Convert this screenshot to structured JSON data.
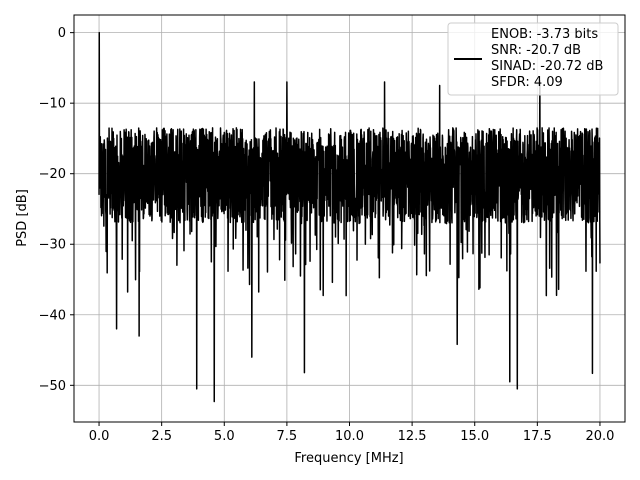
{
  "chart_data": {
    "type": "line",
    "title": "",
    "xlabel": "Frequency [MHz]",
    "ylabel": "PSD [dB]",
    "xlim": [
      -1.0,
      21.0
    ],
    "ylim": [
      -55.2,
      2.5
    ],
    "xticks": [
      0.0,
      2.5,
      5.0,
      7.5,
      10.0,
      12.5,
      15.0,
      17.5,
      20.0
    ],
    "xtick_labels": [
      "0.0",
      "2.5",
      "5.0",
      "7.5",
      "10.0",
      "12.5",
      "15.0",
      "17.5",
      "20.0"
    ],
    "yticks": [
      0,
      -10,
      -20,
      -30,
      -40,
      -50
    ],
    "ytick_labels": [
      "0",
      "−10",
      "−20",
      "−30",
      "−40",
      "−50"
    ],
    "grid": true,
    "legend_placement": "top-right",
    "series": [
      {
        "color": "#000000",
        "x_range": [
          0.0,
          20.0
        ],
        "peak": {
          "x": 0.02,
          "y": 0.0
        },
        "band": {
          "upper_typical": -13.5,
          "lower_typical": -27.0,
          "center": -20.5
        },
        "notable_dips": [
          {
            "x": 3.9,
            "y": -50.5
          },
          {
            "x": 4.6,
            "y": -52.3
          },
          {
            "x": 8.2,
            "y": -48.2
          },
          {
            "x": 16.4,
            "y": -49.5
          },
          {
            "x": 16.7,
            "y": -50.5
          },
          {
            "x": 19.7,
            "y": -48.3
          },
          {
            "x": 6.1,
            "y": -46.0
          },
          {
            "x": 14.3,
            "y": -44.2
          },
          {
            "x": 0.7,
            "y": -42.0
          },
          {
            "x": 1.6,
            "y": -43.0
          }
        ],
        "notable_peaks": [
          {
            "x": 6.2,
            "y": -7.0
          },
          {
            "x": 7.5,
            "y": -7.0
          },
          {
            "x": 11.4,
            "y": -7.0
          },
          {
            "x": 13.6,
            "y": -7.5
          },
          {
            "x": 17.6,
            "y": -6.8
          }
        ]
      }
    ],
    "legend": {
      "lines": [
        "ENOB: -3.73 bits",
        "SNR: -20.7 dB",
        "SINAD: -20.72 dB",
        "SFDR: 4.09"
      ]
    }
  }
}
